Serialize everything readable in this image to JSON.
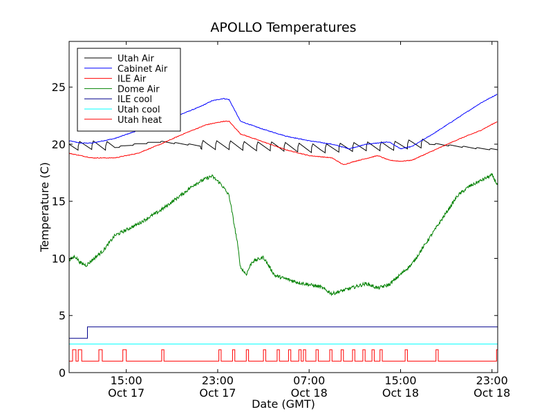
{
  "chart_data": {
    "type": "line",
    "title": "APOLLO Temperatures",
    "xlabel": "Date (GMT)",
    "ylabel": "Temperature (C)",
    "xunit": "hours since Oct 17 10:00 GMT",
    "xlim": [
      0,
      37.5
    ],
    "ylim": [
      0,
      29
    ],
    "yticks": [
      0,
      5,
      10,
      15,
      20,
      25
    ],
    "yticklabels": [
      "0",
      "5",
      "10",
      "15",
      "20",
      "25"
    ],
    "xticks": [
      {
        "x": 5,
        "time": "15:00",
        "date": "Oct 17"
      },
      {
        "x": 13,
        "time": "23:00",
        "date": "Oct 17"
      },
      {
        "x": 21,
        "time": "07:00",
        "date": "Oct 18"
      },
      {
        "x": 29,
        "time": "15:00",
        "date": "Oct 18"
      },
      {
        "x": 37,
        "time": "23:00",
        "date": "Oct 18"
      }
    ],
    "legend_position": "top-left",
    "series": [
      {
        "name": "Utah Air",
        "color": "#000000",
        "style": "sawtooth",
        "x": [
          0,
          2,
          4,
          6,
          8,
          10,
          12,
          14,
          16,
          18,
          20,
          22,
          24,
          26,
          28,
          30,
          32,
          34,
          36,
          37.5
        ],
        "y": [
          19.7,
          19.8,
          19.7,
          20.0,
          20.2,
          20.0,
          19.8,
          19.8,
          19.7,
          19.7,
          19.6,
          19.5,
          19.6,
          19.7,
          19.7,
          19.9,
          20.0,
          19.8,
          19.6,
          19.5
        ]
      },
      {
        "name": "Cabinet Air",
        "color": "#0000ff",
        "style": "smooth",
        "x": [
          0,
          1,
          2,
          4,
          6,
          8,
          10,
          11.5,
          12.5,
          13.5,
          14,
          15,
          17,
          19,
          21,
          23,
          24.5,
          26,
          28,
          29,
          30,
          32,
          34,
          36,
          37.5
        ],
        "y": [
          20.3,
          20.1,
          20.1,
          20.5,
          21.2,
          21.9,
          22.7,
          23.3,
          23.8,
          24.0,
          23.9,
          22.0,
          21.3,
          20.7,
          20.3,
          20.0,
          19.6,
          20.0,
          20.2,
          19.6,
          19.8,
          21.0,
          22.3,
          23.6,
          24.4
        ]
      },
      {
        "name": "ILE Air",
        "color": "#ff0000",
        "style": "smooth",
        "x": [
          0,
          1,
          2,
          4,
          6,
          8,
          10,
          12,
          13.5,
          14,
          15,
          17,
          19,
          21,
          22,
          23,
          24,
          25,
          27,
          28,
          29,
          30,
          32,
          34,
          36,
          37.5
        ],
        "y": [
          19.2,
          19.0,
          18.8,
          18.8,
          19.2,
          20.0,
          20.9,
          21.7,
          22.0,
          22.0,
          20.9,
          20.2,
          19.5,
          19.0,
          18.9,
          18.8,
          18.2,
          18.5,
          19.0,
          18.6,
          18.5,
          18.6,
          19.5,
          20.4,
          21.2,
          22.0
        ]
      },
      {
        "name": "Dome Air",
        "color": "#008000",
        "style": "noisy",
        "x": [
          0,
          0.5,
          1,
          1.5,
          3,
          4,
          6,
          8,
          10,
          11,
          12,
          12.5,
          13.3,
          14,
          14.7,
          15,
          15.5,
          16,
          17,
          18,
          20,
          22,
          23,
          24,
          25,
          26,
          27,
          28,
          30,
          32,
          33,
          34,
          35,
          36,
          37,
          37.5
        ],
        "y": [
          9.8,
          10.2,
          9.6,
          9.4,
          10.7,
          12.0,
          13.0,
          14.2,
          15.7,
          16.5,
          17.0,
          17.2,
          16.5,
          15.5,
          11.5,
          9.2,
          8.6,
          9.7,
          10.1,
          8.5,
          7.9,
          7.5,
          6.9,
          7.2,
          7.5,
          7.8,
          7.4,
          7.7,
          9.5,
          12.5,
          14.0,
          15.5,
          16.3,
          16.8,
          17.3,
          16.4
        ]
      },
      {
        "name": "ILE cool",
        "color": "#00008b",
        "style": "step",
        "x": [
          0,
          1.6,
          1.6,
          37.5
        ],
        "y": [
          3.0,
          3.0,
          4.0,
          4.0
        ]
      },
      {
        "name": "Utah cool",
        "color": "#00ffff",
        "style": "flat",
        "x": [
          0,
          37.5
        ],
        "y": [
          2.5,
          2.5
        ]
      },
      {
        "name": "Utah heat",
        "color": "#ff0000",
        "style": "pulses",
        "baseline": 1.0,
        "high": 2.0,
        "pulses": [
          [
            0.3,
            0.6
          ],
          [
            0.8,
            1.1
          ],
          [
            2.6,
            2.9
          ],
          [
            4.7,
            5.0
          ],
          [
            8.1,
            8.3
          ],
          [
            13.1,
            13.3
          ],
          [
            14.3,
            14.5
          ],
          [
            15.5,
            15.7
          ],
          [
            17.0,
            17.2
          ],
          [
            18.2,
            18.4
          ],
          [
            19.2,
            19.4
          ],
          [
            20.1,
            20.3
          ],
          [
            20.5,
            20.7
          ],
          [
            21.6,
            21.8
          ],
          [
            22.8,
            23.0
          ],
          [
            23.8,
            24.0
          ],
          [
            24.8,
            25.0
          ],
          [
            25.7,
            25.9
          ],
          [
            26.5,
            26.7
          ],
          [
            27.2,
            27.4
          ],
          [
            29.4,
            29.6
          ],
          [
            32.1,
            32.3
          ],
          [
            37.4,
            37.5
          ]
        ]
      }
    ]
  }
}
